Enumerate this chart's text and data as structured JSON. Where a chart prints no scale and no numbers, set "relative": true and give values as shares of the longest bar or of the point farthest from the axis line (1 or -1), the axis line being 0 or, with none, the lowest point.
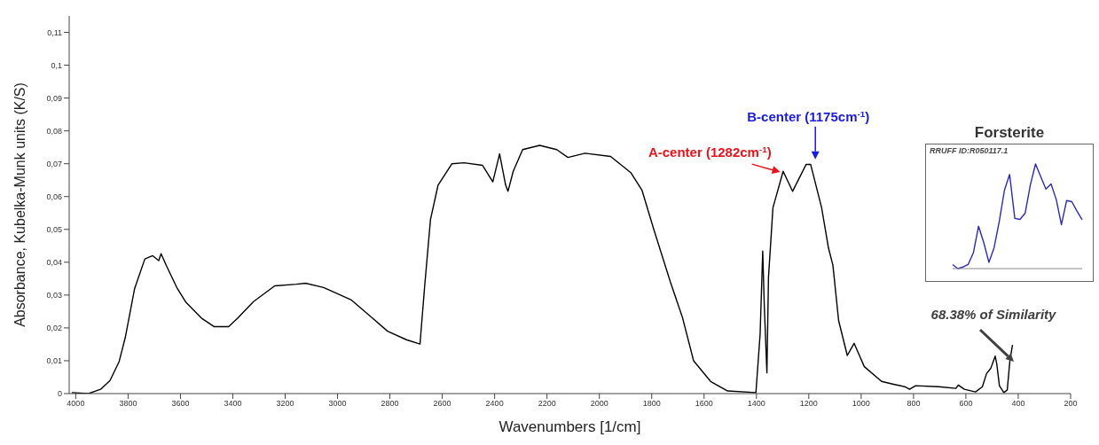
{
  "chart_data": [
    {
      "type": "line",
      "xlabel": "Wavenumbers [1/cm]",
      "ylabel": "Absorbance, Kubelka-Munk units (K/S)",
      "x": [
        4015,
        3951,
        3905,
        3869,
        3834,
        3811,
        3775,
        3736,
        3706,
        3683,
        3674,
        3654,
        3612,
        3579,
        3520,
        3472,
        3416,
        3381,
        3321,
        3240,
        3158,
        3122,
        3053,
        2949,
        2867,
        2809,
        2737,
        2685,
        2668,
        2645,
        2616,
        2563,
        2517,
        2446,
        2407,
        2381,
        2358,
        2349,
        2329,
        2293,
        2228,
        2163,
        2120,
        2055,
        1957,
        1879,
        1837,
        1794,
        1728,
        1683,
        1640,
        1575,
        1510,
        1402,
        1386,
        1376,
        1370,
        1360,
        1354,
        1337,
        1298,
        1262,
        1210,
        1193,
        1151,
        1125,
        1108,
        1086,
        1053,
        1027,
        988,
        922,
        880,
        834,
        815,
        792,
        704,
        638,
        629,
        606,
        563,
        537,
        521,
        505,
        488,
        482,
        472,
        455,
        442,
        432,
        422
      ],
      "series": [
        {
          "color": "#000000",
          "values": [
            0.0003,
            0,
            0.0013,
            0.004,
            0.0098,
            0.017,
            0.032,
            0.041,
            0.042,
            0.0405,
            0.0426,
            0.039,
            0.032,
            0.0278,
            0.023,
            0.0204,
            0.0204,
            0.023,
            0.028,
            0.0328,
            0.0333,
            0.0336,
            0.0323,
            0.0286,
            0.023,
            0.019,
            0.0164,
            0.0151,
            0.032,
            0.053,
            0.0635,
            0.07,
            0.0703,
            0.0695,
            0.0645,
            0.073,
            0.0635,
            0.0616,
            0.0677,
            0.0743,
            0.0756,
            0.0743,
            0.0719,
            0.0732,
            0.0722,
            0.0672,
            0.0619,
            0.0505,
            0.0338,
            0.0233,
            0.01,
            0.0037,
            0.0008,
            0.0003,
            0.018,
            0.0434,
            0.0267,
            0.0063,
            0.0354,
            0.0566,
            0.0677,
            0.0616,
            0.0698,
            0.0698,
            0.0566,
            0.0444,
            0.0391,
            0.0222,
            0.0116,
            0.0153,
            0.0082,
            0.0037,
            0.0029,
            0.0021,
            0.0013,
            0.0024,
            0.0021,
            0.0016,
            0.0026,
            0.0013,
            0.0005,
            0.0021,
            0.0061,
            0.0077,
            0.0114,
            0.009,
            0.0024,
            0.0003,
            0.0011,
            0.01,
            0.0148
          ]
        }
      ],
      "xlim": [
        4025,
        200
      ],
      "xticks": [
        4000,
        3800,
        3600,
        3400,
        3200,
        3000,
        2800,
        2600,
        2400,
        2200,
        2000,
        1800,
        1600,
        1400,
        1200,
        1000,
        800,
        600,
        400,
        200
      ],
      "ylim": [
        0,
        0.115
      ],
      "yticks": [
        0,
        {
          "value": 0.01,
          "label": "0,01"
        },
        {
          "value": 0.02,
          "label": "0,02"
        },
        {
          "value": 0.03,
          "label": "0,03"
        },
        {
          "value": 0.04,
          "label": "0,04"
        },
        {
          "value": 0.05,
          "label": "0,05"
        },
        {
          "value": 0.06,
          "label": "0,06"
        },
        {
          "value": 0.07,
          "label": "0,07"
        },
        {
          "value": 0.08,
          "label": "0,08"
        },
        {
          "value": 0.09,
          "label": "0,09"
        },
        {
          "value": 0.1,
          "label": "0,1"
        },
        {
          "value": 0.11,
          "label": "0,11"
        }
      ],
      "annotations": [
        {
          "text": "A-center (1282cm$^{-1}$)",
          "x": 1282,
          "y": 0.068
        },
        {
          "text": "B-center (1175cm$^{-1}$)",
          "x": 1175,
          "y": 0.07
        },
        "68.38% of Similarity"
      ]
    },
    {
      "type": "line",
      "title": "Forsterite",
      "relative": true,
      "categories": [
        null,
        null,
        null,
        null,
        null,
        null,
        null,
        null,
        null,
        null,
        null,
        null,
        null,
        null,
        null,
        null,
        null,
        null,
        null,
        null,
        null,
        null,
        null,
        null,
        null,
        null
      ],
      "series": [
        {
          "color": "#2b2bb8",
          "values": [
            0.038,
            0,
            0.015,
            0.04,
            0.15,
            0.405,
            0.25,
            0.06,
            0.2,
            0.45,
            0.75,
            0.9,
            0.48,
            0.47,
            0.53,
            0.8,
            1,
            0.88,
            0.76,
            0.81,
            0.66,
            0.42,
            0.65,
            0.64,
            0.55,
            0.468
          ]
        }
      ],
      "annotations": [
        "RRUFF ID:R050117.1"
      ]
    }
  ]
}
